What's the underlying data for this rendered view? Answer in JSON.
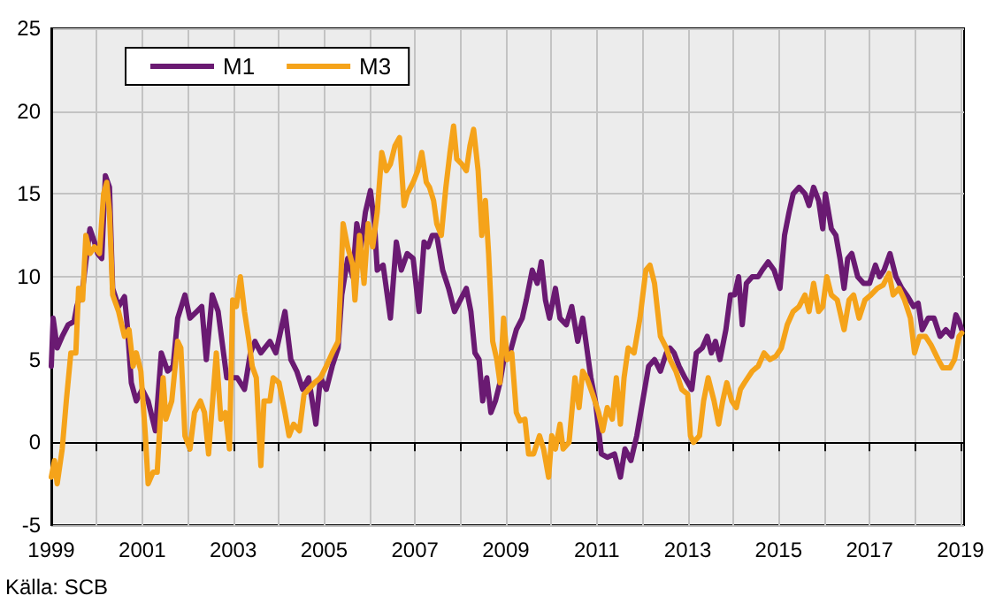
{
  "chart_data": {
    "type": "line",
    "legend": "top left",
    "grid": true,
    "marker": "none",
    "line_style": "solid",
    "xlim": [
      1999,
      2019.08
    ],
    "xticks": [
      1999,
      {
        "value": 2000,
        "label": null
      },
      2001,
      {
        "value": 2002,
        "label": null
      },
      2003,
      {
        "value": 2004,
        "label": null
      },
      2005,
      {
        "value": 2006,
        "label": null
      },
      2007,
      {
        "value": 2008,
        "label": null
      },
      2009,
      {
        "value": 2010,
        "label": null
      },
      2011,
      {
        "value": 2012,
        "label": null
      },
      2013,
      {
        "value": 2014,
        "label": null
      },
      2015,
      {
        "value": 2016,
        "label": null
      },
      2017,
      {
        "value": 2018,
        "label": null
      },
      2019
    ],
    "ylim": [
      -5,
      25
    ],
    "yticks": [
      -5,
      0,
      5,
      10,
      15,
      20,
      25
    ],
    "annotations": [
      "Källa: SCB"
    ],
    "series": [
      {
        "name": "M1",
        "color": "#6a1a72",
        "x": [
          1999.0,
          1999.04,
          1999.13,
          1999.24,
          1999.37,
          1999.5,
          1999.56,
          1999.69,
          1999.8,
          1999.85,
          1999.95,
          2000.02,
          2000.11,
          2000.19,
          2000.28,
          2000.35,
          2000.48,
          2000.61,
          2000.67,
          2000.76,
          2000.87,
          2001.0,
          2001.13,
          2001.29,
          2001.42,
          2001.56,
          2001.68,
          2001.78,
          2001.94,
          2002.05,
          2002.2,
          2002.31,
          2002.41,
          2002.54,
          2002.67,
          2002.86,
          2002.99,
          2003.09,
          2003.25,
          2003.38,
          2003.48,
          2003.61,
          2003.81,
          2003.94,
          2004.14,
          2004.27,
          2004.4,
          2004.53,
          2004.66,
          2004.82,
          2004.92,
          2005.05,
          2005.18,
          2005.31,
          2005.39,
          2005.52,
          2005.63,
          2005.72,
          2005.81,
          2005.91,
          2006.02,
          2006.11,
          2006.17,
          2006.3,
          2006.46,
          2006.59,
          2006.7,
          2006.83,
          2006.96,
          2007.09,
          2007.2,
          2007.29,
          2007.38,
          2007.48,
          2007.61,
          2007.74,
          2007.87,
          2008.0,
          2008.13,
          2008.23,
          2008.32,
          2008.41,
          2008.49,
          2008.58,
          2008.67,
          2008.77,
          2008.87,
          2008.98,
          2009.09,
          2009.23,
          2009.36,
          2009.45,
          2009.58,
          2009.69,
          2009.78,
          2009.87,
          2009.96,
          2010.09,
          2010.19,
          2010.33,
          2010.45,
          2010.58,
          2010.69,
          2010.78,
          2010.87,
          2010.97,
          2011.1,
          2011.23,
          2011.39,
          2011.52,
          2011.62,
          2011.75,
          2011.88,
          2012.01,
          2012.14,
          2012.27,
          2012.4,
          2012.53,
          2012.61,
          2012.7,
          2012.81,
          2012.94,
          2013.09,
          2013.19,
          2013.32,
          2013.43,
          2013.52,
          2013.61,
          2013.71,
          2013.84,
          2013.94,
          2014.03,
          2014.12,
          2014.2,
          2014.29,
          2014.42,
          2014.55,
          2014.64,
          2014.77,
          2014.9,
          2015.03,
          2015.13,
          2015.23,
          2015.32,
          2015.45,
          2015.58,
          2015.67,
          2015.77,
          2015.88,
          2015.97,
          2016.03,
          2016.16,
          2016.26,
          2016.35,
          2016.44,
          2016.52,
          2016.61,
          2016.74,
          2016.87,
          2017.0,
          2017.13,
          2017.22,
          2017.32,
          2017.45,
          2017.58,
          2017.71,
          2017.84,
          2017.97,
          2018.07,
          2018.16,
          2018.29,
          2018.42,
          2018.55,
          2018.68,
          2018.81,
          2018.9,
          2018.97,
          2019.03
        ],
        "values": [
          4.6,
          7.5,
          5.7,
          6.4,
          7.1,
          7.3,
          8.2,
          9.3,
          11.8,
          12.9,
          12.1,
          11.4,
          11.1,
          16.1,
          15.4,
          9.3,
          8.2,
          8.8,
          7.1,
          3.6,
          2.5,
          3.2,
          2.5,
          0.7,
          5.4,
          4.3,
          4.6,
          7.5,
          8.9,
          7.5,
          7.9,
          8.2,
          5.0,
          8.9,
          7.9,
          3.9,
          3.9,
          3.9,
          3.2,
          5.4,
          6.1,
          5.4,
          6.1,
          5.4,
          7.9,
          5.0,
          4.3,
          3.2,
          3.9,
          1.1,
          3.9,
          3.2,
          4.6,
          5.7,
          8.9,
          11.1,
          10.0,
          13.2,
          11.8,
          13.9,
          15.2,
          13.2,
          10.4,
          10.7,
          7.5,
          12.1,
          10.4,
          11.4,
          11.1,
          7.9,
          12.1,
          11.8,
          12.5,
          12.5,
          10.4,
          9.3,
          7.9,
          8.6,
          9.3,
          7.9,
          5.4,
          5.0,
          2.5,
          3.9,
          1.8,
          2.5,
          3.6,
          5.4,
          5.4,
          6.8,
          7.5,
          8.6,
          10.4,
          9.6,
          10.9,
          8.6,
          7.5,
          9.3,
          7.5,
          7.1,
          8.2,
          6.1,
          7.5,
          5.7,
          3.9,
          2.5,
          -0.7,
          -0.9,
          -0.7,
          -2.1,
          -0.4,
          -1.1,
          0.4,
          2.5,
          4.6,
          5.0,
          4.3,
          5.4,
          5.7,
          5.4,
          4.6,
          3.9,
          3.2,
          5.4,
          5.7,
          6.4,
          5.4,
          6.1,
          5.0,
          6.8,
          8.9,
          8.9,
          10.0,
          7.1,
          9.6,
          10.0,
          10.0,
          10.4,
          10.9,
          10.4,
          9.3,
          12.5,
          13.9,
          15.0,
          15.4,
          15.0,
          14.3,
          15.4,
          14.6,
          12.9,
          15.0,
          12.9,
          12.5,
          11.1,
          9.3,
          11.1,
          11.4,
          10.0,
          9.6,
          9.6,
          10.7,
          10.0,
          10.4,
          11.4,
          10.0,
          9.3,
          8.8,
          8.2,
          8.4,
          6.8,
          7.5,
          7.5,
          6.4,
          6.8,
          6.4,
          7.7,
          7.3,
          6.8
        ]
      },
      {
        "name": "M3",
        "color": "#f5a31a",
        "x": [
          1999.0,
          1999.07,
          1999.13,
          1999.24,
          1999.33,
          1999.43,
          1999.54,
          1999.6,
          1999.69,
          1999.76,
          1999.85,
          1999.95,
          2000.06,
          2000.15,
          2000.22,
          2000.28,
          2000.35,
          2000.48,
          2000.61,
          2000.71,
          2000.8,
          2000.87,
          2000.97,
          2001.07,
          2001.13,
          2001.24,
          2001.33,
          2001.39,
          2001.46,
          2001.52,
          2001.65,
          2001.78,
          2001.85,
          2001.94,
          2002.05,
          2002.15,
          2002.28,
          2002.37,
          2002.46,
          2002.63,
          2002.73,
          2002.83,
          2002.92,
          2002.99,
          2003.07,
          2003.16,
          2003.25,
          2003.35,
          2003.42,
          2003.51,
          2003.61,
          2003.68,
          2003.81,
          2003.88,
          2004.01,
          2004.14,
          2004.23,
          2004.33,
          2004.46,
          2004.56,
          2004.66,
          2004.79,
          2004.92,
          2005.05,
          2005.18,
          2005.31,
          2005.42,
          2005.52,
          2005.63,
          2005.68,
          2005.78,
          2005.88,
          2005.97,
          2006.07,
          2006.17,
          2006.27,
          2006.37,
          2006.46,
          2006.56,
          2006.66,
          2006.76,
          2006.83,
          2006.96,
          2007.06,
          2007.15,
          2007.25,
          2007.32,
          2007.41,
          2007.48,
          2007.58,
          2007.68,
          2007.77,
          2007.85,
          2007.92,
          2008.03,
          2008.13,
          2008.21,
          2008.29,
          2008.39,
          2008.47,
          2008.55,
          2008.62,
          2008.71,
          2008.8,
          2008.87,
          2008.95,
          2009.03,
          2009.13,
          2009.23,
          2009.31,
          2009.42,
          2009.5,
          2009.61,
          2009.74,
          2009.83,
          2009.94,
          2010.01,
          2010.09,
          2010.19,
          2010.26,
          2010.39,
          2010.52,
          2010.61,
          2010.69,
          2010.78,
          2010.91,
          2011.04,
          2011.13,
          2011.23,
          2011.34,
          2011.43,
          2011.52,
          2011.6,
          2011.69,
          2011.82,
          2011.95,
          2012.08,
          2012.17,
          2012.27,
          2012.4,
          2012.53,
          2012.61,
          2012.74,
          2012.87,
          2013.0,
          2013.06,
          2013.13,
          2013.26,
          2013.35,
          2013.45,
          2013.58,
          2013.68,
          2013.77,
          2013.86,
          2013.97,
          2014.07,
          2014.16,
          2014.25,
          2014.42,
          2014.55,
          2014.68,
          2014.81,
          2014.94,
          2015.06,
          2015.19,
          2015.32,
          2015.45,
          2015.58,
          2015.67,
          2015.77,
          2015.88,
          2015.97,
          2016.06,
          2016.16,
          2016.29,
          2016.44,
          2016.55,
          2016.65,
          2016.77,
          2016.9,
          2017.03,
          2017.17,
          2017.3,
          2017.43,
          2017.52,
          2017.65,
          2017.77,
          2017.9,
          2017.99,
          2018.1,
          2018.23,
          2018.35,
          2018.51,
          2018.61,
          2018.77,
          2018.87,
          2018.97,
          2019.03
        ],
        "values": [
          -2.1,
          -1.1,
          -2.5,
          -0.4,
          2.5,
          5.4,
          5.4,
          9.3,
          8.6,
          12.5,
          11.4,
          11.8,
          11.4,
          15.0,
          15.7,
          13.9,
          8.9,
          7.9,
          6.4,
          6.8,
          4.6,
          5.4,
          4.3,
          0.4,
          -2.5,
          -1.8,
          -1.8,
          1.1,
          3.9,
          1.4,
          2.5,
          6.1,
          5.7,
          0.4,
          -0.4,
          1.8,
          2.5,
          1.8,
          -0.7,
          5.4,
          1.4,
          1.8,
          -0.4,
          8.6,
          8.2,
          10.0,
          7.9,
          6.1,
          4.6,
          3.9,
          -1.4,
          2.5,
          2.5,
          3.9,
          3.6,
          1.8,
          0.4,
          1.1,
          0.7,
          2.9,
          3.2,
          3.6,
          3.9,
          4.6,
          5.4,
          6.1,
          13.2,
          11.8,
          10.7,
          8.6,
          12.5,
          9.6,
          13.2,
          11.8,
          13.9,
          17.5,
          16.4,
          16.8,
          17.9,
          18.4,
          14.3,
          15.0,
          15.7,
          16.4,
          17.5,
          15.7,
          15.4,
          14.6,
          13.2,
          12.5,
          15.4,
          17.5,
          19.1,
          17.1,
          16.8,
          16.4,
          17.9,
          18.9,
          16.4,
          12.5,
          14.6,
          11.4,
          6.1,
          5.0,
          3.6,
          7.5,
          5.0,
          5.4,
          1.8,
          1.3,
          1.4,
          -0.7,
          -0.7,
          0.4,
          -0.4,
          -2.1,
          0.4,
          -0.4,
          1.1,
          -0.4,
          0,
          3.9,
          2.1,
          4.3,
          3.9,
          2.9,
          1.8,
          0.7,
          2.1,
          1.4,
          3.9,
          1.1,
          3.9,
          5.7,
          5.4,
          7.5,
          10.4,
          10.7,
          9.6,
          6.4,
          5.7,
          5.0,
          4.3,
          3.2,
          2.9,
          0.4,
          0,
          0.4,
          2.5,
          3.9,
          2.5,
          1.1,
          2.5,
          3.6,
          2.5,
          2.1,
          3.2,
          3.6,
          4.3,
          4.6,
          5.4,
          5.0,
          5.2,
          5.7,
          7.1,
          7.9,
          8.2,
          8.9,
          7.9,
          9.6,
          7.9,
          8.2,
          10.0,
          8.9,
          8.6,
          6.8,
          8.6,
          8.9,
          7.5,
          8.6,
          8.9,
          9.3,
          9.5,
          10.2,
          8.9,
          9.3,
          8.6,
          7.5,
          5.4,
          6.4,
          6.4,
          5.9,
          5.0,
          4.5,
          4.5,
          5.0,
          6.4,
          6.6
        ]
      }
    ]
  }
}
